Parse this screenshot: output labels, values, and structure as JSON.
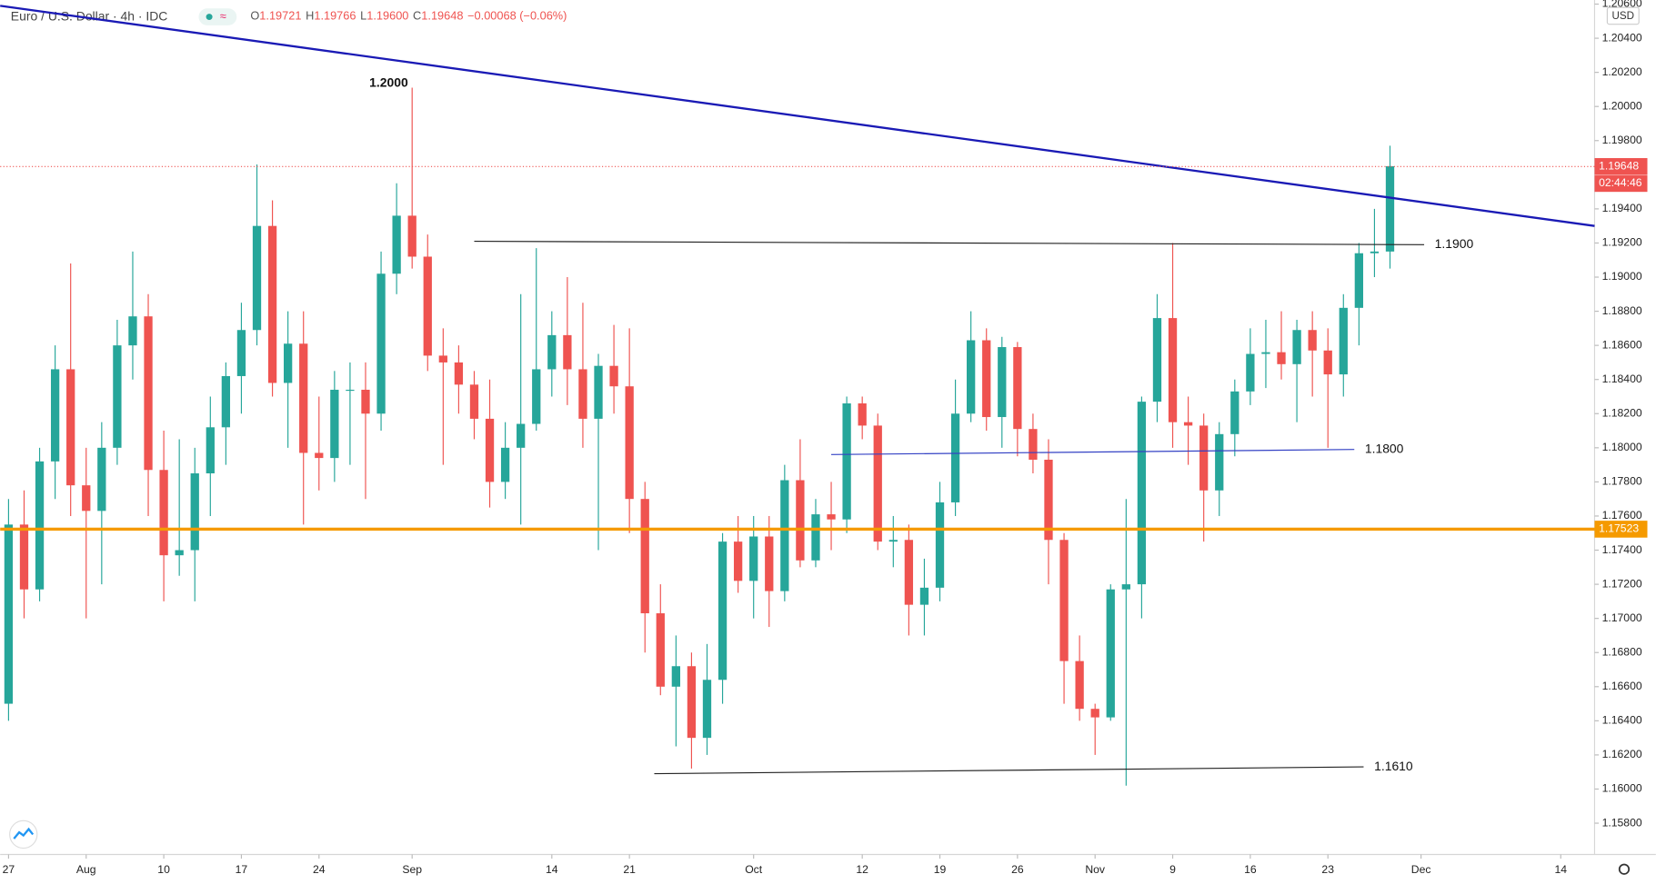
{
  "legend": {
    "name": "Euro / U.S. Dollar · 4h · IDC",
    "open": "1.19721",
    "high": "1.19766",
    "low": "1.19600",
    "close": "1.19648",
    "change": "−0.00068 (−0.06%)"
  },
  "currency": "USD",
  "chart_data": {
    "type": "candlestick",
    "up_color": "#26a69a",
    "down_color": "#ef5350",
    "xlim": [
      -0.54,
      102.18
    ],
    "ylim": [
      1.15629,
      1.20624
    ],
    "grid": false,
    "xticks": [
      {
        "value": 0,
        "label": "27"
      },
      {
        "value": 5,
        "label": "Aug"
      },
      {
        "value": 10,
        "label": "10"
      },
      {
        "value": 15,
        "label": "17"
      },
      {
        "value": 20,
        "label": "24"
      },
      {
        "value": 26,
        "label": "Sep"
      },
      {
        "value": 35,
        "label": "14"
      },
      {
        "value": 40,
        "label": "21"
      },
      {
        "value": 48,
        "label": "Oct"
      },
      {
        "value": 55,
        "label": "12"
      },
      {
        "value": 60,
        "label": "19"
      },
      {
        "value": 65,
        "label": "26"
      },
      {
        "value": 70,
        "label": "Nov"
      },
      {
        "value": 75,
        "label": "9"
      },
      {
        "value": 80,
        "label": "16"
      },
      {
        "value": 85,
        "label": "23"
      },
      {
        "value": 91,
        "label": "Dec"
      },
      {
        "value": 100,
        "label": "14"
      }
    ],
    "yticks": [
      {
        "value": 1.158,
        "label": "1.15800"
      },
      {
        "value": 1.16,
        "label": "1.16000"
      },
      {
        "value": 1.162,
        "label": "1.16200"
      },
      {
        "value": 1.164,
        "label": "1.16400"
      },
      {
        "value": 1.166,
        "label": "1.16600"
      },
      {
        "value": 1.168,
        "label": "1.16800"
      },
      {
        "value": 1.17,
        "label": "1.17000"
      },
      {
        "value": 1.172,
        "label": "1.17200"
      },
      {
        "value": 1.174,
        "label": "1.17400"
      },
      {
        "value": 1.176,
        "label": "1.17600"
      },
      {
        "value": 1.178,
        "label": "1.17800"
      },
      {
        "value": 1.18,
        "label": "1.18000"
      },
      {
        "value": 1.182,
        "label": "1.18200"
      },
      {
        "value": 1.184,
        "label": "1.18400"
      },
      {
        "value": 1.186,
        "label": "1.18600"
      },
      {
        "value": 1.188,
        "label": "1.18800"
      },
      {
        "value": 1.19,
        "label": "1.19000"
      },
      {
        "value": 1.192,
        "label": "1.19200"
      },
      {
        "value": 1.194,
        "label": "1.19400"
      },
      {
        "value": 1.196,
        "label": "1.19600"
      },
      {
        "value": 1.198,
        "label": "1.19800"
      },
      {
        "value": 1.2,
        "label": "1.20000"
      },
      {
        "value": 1.202,
        "label": "1.20200"
      },
      {
        "value": 1.204,
        "label": "1.20400"
      },
      {
        "value": 1.206,
        "label": "1.20600"
      }
    ],
    "x": [
      0,
      1,
      2,
      3,
      4,
      5,
      6,
      7,
      8,
      9,
      10,
      11,
      12,
      13,
      14,
      15,
      16,
      17,
      18,
      19,
      20,
      21,
      22,
      23,
      24,
      25,
      26,
      27,
      28,
      29,
      30,
      31,
      32,
      33,
      34,
      35,
      36,
      37,
      38,
      39,
      40,
      41,
      42,
      43,
      44,
      45,
      46,
      47,
      48,
      49,
      50,
      51,
      52,
      53,
      54,
      55,
      56,
      57,
      58,
      59,
      60,
      61,
      62,
      63,
      64,
      65,
      66,
      67,
      68,
      69,
      70,
      71,
      72,
      73,
      74,
      75,
      76,
      77,
      78,
      79,
      80,
      81,
      82,
      83,
      84,
      85,
      86,
      87,
      88,
      89
    ],
    "open": [
      1.165,
      1.1755,
      1.1717,
      1.1792,
      1.1846,
      1.1778,
      1.1763,
      1.18,
      1.186,
      1.1877,
      1.1787,
      1.1737,
      1.174,
      1.1785,
      1.1812,
      1.1842,
      1.1869,
      1.193,
      1.1838,
      1.1861,
      1.1797,
      1.1794,
      1.1834,
      1.1834,
      1.182,
      1.1902,
      1.1936,
      1.1912,
      1.1854,
      1.185,
      1.1837,
      1.1817,
      1.178,
      1.18,
      1.1814,
      1.1846,
      1.1866,
      1.1846,
      1.1817,
      1.1848,
      1.1836,
      1.177,
      1.1703,
      1.166,
      1.1672,
      1.163,
      1.1664,
      1.1745,
      1.1722,
      1.1748,
      1.1716,
      1.1781,
      1.1734,
      1.1761,
      1.1758,
      1.1826,
      1.1813,
      1.1745,
      1.1746,
      1.1708,
      1.1718,
      1.1768,
      1.182,
      1.1863,
      1.1818,
      1.1859,
      1.1811,
      1.1793,
      1.1746,
      1.1675,
      1.1647,
      1.1642,
      1.1717,
      1.172,
      1.1827,
      1.1876,
      1.1815,
      1.1813,
      1.1775,
      1.1808,
      1.1833,
      1.1855,
      1.1856,
      1.1849,
      1.1869,
      1.1857,
      1.1843,
      1.1882,
      1.1914,
      1.1915
    ],
    "high": [
      1.177,
      1.1775,
      1.18,
      1.186,
      1.1908,
      1.18,
      1.1815,
      1.1875,
      1.1915,
      1.189,
      1.181,
      1.1805,
      1.18,
      1.183,
      1.185,
      1.1885,
      1.1966,
      1.1945,
      1.188,
      1.188,
      1.183,
      1.1845,
      1.185,
      1.185,
      1.1915,
      1.1955,
      1.2011,
      1.1925,
      1.187,
      1.186,
      1.1845,
      1.184,
      1.1815,
      1.189,
      1.1917,
      1.188,
      1.19,
      1.1885,
      1.1855,
      1.1872,
      1.187,
      1.178,
      1.172,
      1.169,
      1.168,
      1.1685,
      1.175,
      1.176,
      1.176,
      1.176,
      1.179,
      1.1805,
      1.177,
      1.178,
      1.183,
      1.183,
      1.182,
      1.176,
      1.1755,
      1.1735,
      1.178,
      1.184,
      1.188,
      1.187,
      1.1865,
      1.1862,
      1.182,
      1.1805,
      1.175,
      1.169,
      1.165,
      1.172,
      1.177,
      1.183,
      1.189,
      1.192,
      1.183,
      1.182,
      1.1815,
      1.184,
      1.187,
      1.1875,
      1.188,
      1.1875,
      1.188,
      1.187,
      1.189,
      1.192,
      1.194,
      1.1977
    ],
    "low": [
      1.164,
      1.17,
      1.171,
      1.177,
      1.176,
      1.17,
      1.172,
      1.179,
      1.184,
      1.176,
      1.171,
      1.1725,
      1.171,
      1.176,
      1.179,
      1.182,
      1.186,
      1.183,
      1.18,
      1.1755,
      1.1775,
      1.178,
      1.179,
      1.177,
      1.181,
      1.189,
      1.1905,
      1.1845,
      1.179,
      1.182,
      1.1805,
      1.1765,
      1.177,
      1.1755,
      1.181,
      1.183,
      1.1825,
      1.18,
      1.174,
      1.182,
      1.175,
      1.168,
      1.1655,
      1.1625,
      1.1612,
      1.162,
      1.165,
      1.1715,
      1.17,
      1.1695,
      1.171,
      1.173,
      1.173,
      1.174,
      1.175,
      1.1805,
      1.174,
      1.173,
      1.169,
      1.169,
      1.171,
      1.176,
      1.1815,
      1.181,
      1.18,
      1.1795,
      1.1785,
      1.172,
      1.165,
      1.164,
      1.162,
      1.164,
      1.1602,
      1.17,
      1.1815,
      1.18,
      1.179,
      1.1745,
      1.176,
      1.1795,
      1.1825,
      1.1835,
      1.184,
      1.1815,
      1.183,
      1.18,
      1.183,
      1.186,
      1.19,
      1.1905
    ],
    "close": [
      1.1755,
      1.1717,
      1.1792,
      1.1846,
      1.1778,
      1.1763,
      1.18,
      1.186,
      1.1877,
      1.1787,
      1.1737,
      1.174,
      1.1785,
      1.1812,
      1.1842,
      1.1869,
      1.193,
      1.1838,
      1.1861,
      1.1797,
      1.1794,
      1.1834,
      1.1834,
      1.182,
      1.1902,
      1.1936,
      1.1912,
      1.1854,
      1.185,
      1.1837,
      1.1817,
      1.178,
      1.18,
      1.1814,
      1.1846,
      1.1866,
      1.1846,
      1.1817,
      1.1848,
      1.1836,
      1.177,
      1.1703,
      1.166,
      1.1672,
      1.163,
      1.1664,
      1.1745,
      1.1722,
      1.1748,
      1.1716,
      1.1781,
      1.1734,
      1.1761,
      1.1758,
      1.1826,
      1.1813,
      1.1745,
      1.1746,
      1.1708,
      1.1718,
      1.1768,
      1.182,
      1.1863,
      1.1818,
      1.1859,
      1.1811,
      1.1793,
      1.1746,
      1.1675,
      1.1647,
      1.1642,
      1.1717,
      1.172,
      1.1827,
      1.1876,
      1.1815,
      1.1813,
      1.1775,
      1.1808,
      1.1833,
      1.1855,
      1.1856,
      1.1849,
      1.1869,
      1.1857,
      1.1843,
      1.1882,
      1.1914,
      1.1915,
      1.1965
    ],
    "lines": [
      {
        "x": [
          -0.54,
          102.18
        ],
        "y": [
          1.2059,
          1.193
        ],
        "color": "#1a1ab5",
        "width": 2
      },
      {
        "x": [
          30,
          91.2
        ],
        "y": [
          1.1921,
          1.1919
        ],
        "color": "#222222",
        "width": 1,
        "label": "1.1900"
      },
      {
        "x": [
          53,
          86.7
        ],
        "y": [
          1.1796,
          1.1799
        ],
        "color": "#3341c4",
        "width": 1,
        "label": "1.1800"
      },
      {
        "x": [
          41.6,
          87.3
        ],
        "y": [
          1.1609,
          1.1613
        ],
        "color": "#222222",
        "width": 1,
        "label": "1.1610"
      }
    ],
    "annotation": "1.2000",
    "hline": {
      "value": 1.17523,
      "color": "#f59a00"
    },
    "last_price": {
      "value": 1.19648,
      "color": "#ef5350",
      "countdown": "02:44:46"
    }
  }
}
